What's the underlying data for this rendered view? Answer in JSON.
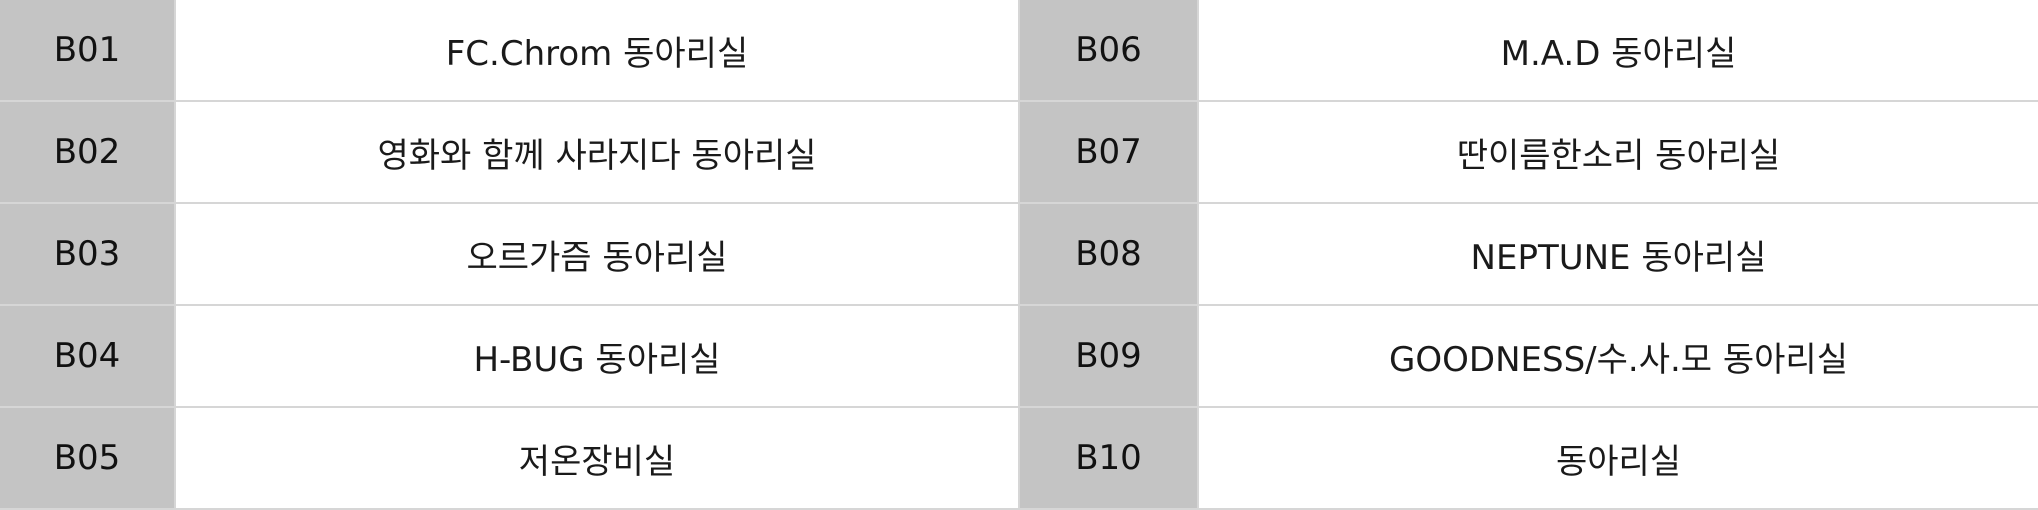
{
  "colors": {
    "code_cell_bg": "#c4c4c4",
    "name_cell_bg": "#ffffff",
    "grid_line": "#d6d6d6",
    "text": "#1a1a1a"
  },
  "rows": [
    {
      "left_code": "B01",
      "left_name": "FC.Chrom 동아리실",
      "right_code": "B06",
      "right_name": "M.A.D 동아리실"
    },
    {
      "left_code": "B02",
      "left_name": "영화와 함께 사라지다 동아리실",
      "right_code": "B07",
      "right_name": "딴이름한소리 동아리실"
    },
    {
      "left_code": "B03",
      "left_name": "오르가즘 동아리실",
      "right_code": "B08",
      "right_name": "NEPTUNE 동아리실"
    },
    {
      "left_code": "B04",
      "left_name": "H-BUG 동아리실",
      "right_code": "B09",
      "right_name": "GOODNESS/수.사.모 동아리실"
    },
    {
      "left_code": "B05",
      "left_name": "저온장비실",
      "right_code": "B10",
      "right_name": "동아리실"
    }
  ]
}
